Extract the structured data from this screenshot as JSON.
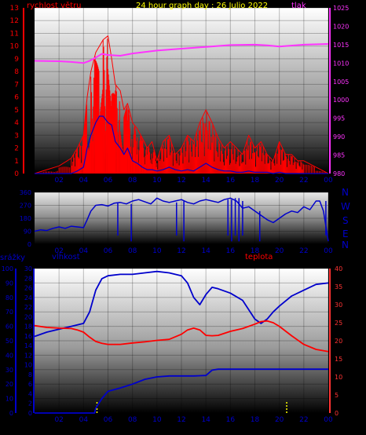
{
  "colors": {
    "wind": "#ff0000",
    "pressure": "#ff33ff",
    "title": "#ffff00",
    "direction": "#0000cc",
    "humidity": "#0000cc",
    "temperature": "#ff0000",
    "rain": "#0000cc",
    "rain_ticks": "#ffff00",
    "axis_right_top": "#ff33ff",
    "axis_right_bottom": "#ff3333",
    "axis_left": "#0000cc"
  },
  "header": {
    "wind_label": "rychlost větru",
    "title": "24 hour graph day : 26 Julio 2022",
    "pressure_label": "tlak"
  },
  "bottom_header": {
    "rain_label": "srážky",
    "humidity_label": "vlhkost",
    "temp_label": "teplota"
  },
  "compass": [
    "N",
    "W",
    "S",
    "E",
    "N"
  ],
  "x_ticks": [
    "02",
    "04",
    "06",
    "08",
    "10",
    "12",
    "14",
    "16",
    "18",
    "20",
    "22",
    "00"
  ],
  "chart_data": [
    {
      "type": "line",
      "title": "24 hour graph day : 26 Julio 2022",
      "x_ticks": [
        "02",
        "04",
        "06",
        "08",
        "10",
        "12",
        "14",
        "16",
        "18",
        "20",
        "22",
        "00"
      ],
      "left_axis": {
        "label": "rychlost větru",
        "ticks": [
          0,
          1,
          2,
          3,
          4,
          5,
          6,
          7,
          8,
          9,
          10,
          11,
          12,
          13
        ],
        "ylim": [
          0,
          13
        ]
      },
      "right_axis": {
        "label": "tlak",
        "ticks": [
          980,
          985,
          990,
          995,
          1000,
          1005,
          1010,
          1015,
          1020,
          1025
        ],
        "ylim": [
          980,
          1025
        ]
      },
      "series": [
        {
          "name": "rychlost větru",
          "x": [
            0,
            1,
            2,
            3,
            3.5,
            4,
            4.3,
            4.6,
            5,
            5.3,
            5.6,
            6,
            6.3,
            6.6,
            7,
            7.3,
            7.6,
            8,
            8.4,
            8.8,
            9.2,
            9.6,
            10,
            10.5,
            11,
            11.5,
            12,
            12.5,
            13,
            13.5,
            14,
            14.5,
            15,
            15.5,
            16,
            16.5,
            17,
            17.5,
            18,
            18.5,
            19,
            19.5,
            20,
            20.5,
            21,
            21.5,
            22,
            23,
            24
          ],
          "gusts": [
            0,
            0.3,
            0.6,
            1.2,
            2,
            3,
            6,
            8,
            9.5,
            10,
            10.5,
            10.8,
            9,
            7,
            6.5,
            5,
            5.5,
            4,
            3.5,
            2.8,
            2,
            2.5,
            1,
            2.5,
            3,
            1.5,
            2,
            3,
            2.5,
            4,
            5,
            4,
            2.8,
            2,
            2.5,
            2,
            1.5,
            3,
            2,
            2.5,
            1.5,
            1,
            2.5,
            1.5,
            1.5,
            1,
            1,
            0.5,
            0
          ],
          "average": [
            0,
            0,
            0,
            0,
            0.2,
            0.5,
            2,
            3,
            4,
            4.5,
            4.5,
            4,
            3.8,
            2.5,
            2,
            1.5,
            2,
            1,
            0.8,
            0.5,
            0.3,
            0.3,
            0.2,
            0.3,
            0.5,
            0.3,
            0.2,
            0.3,
            0.2,
            0.5,
            0.8,
            0.5,
            0.3,
            0.2,
            0.2,
            0.1,
            0.1,
            0.2,
            0.1,
            0.1,
            0.1,
            0,
            0.1,
            0,
            0,
            0,
            0,
            0,
            0
          ]
        },
        {
          "name": "tlak",
          "x": [
            0,
            2,
            3,
            4,
            4.5,
            5,
            5.5,
            6,
            7,
            8,
            10,
            12,
            14,
            16,
            18,
            19,
            20,
            22,
            24
          ],
          "values": [
            1010.6,
            1010.5,
            1010.3,
            1010.0,
            1010.6,
            1011.5,
            1012.5,
            1012.2,
            1012.0,
            1012.6,
            1013.4,
            1013.9,
            1014.4,
            1014.9,
            1015.0,
            1014.8,
            1014.5,
            1015.0,
            1015.2
          ]
        }
      ]
    },
    {
      "type": "line",
      "x_ticks": [
        "02",
        "04",
        "06",
        "08",
        "10",
        "12",
        "14",
        "16",
        "18",
        "20",
        "22",
        "00"
      ],
      "left_axis": {
        "ticks": [
          0,
          90,
          180,
          270,
          360
        ],
        "ylim": [
          0,
          360
        ]
      },
      "right_axis": {
        "ticks": [
          "N",
          "W",
          "S",
          "E",
          "N"
        ]
      },
      "series": [
        {
          "name": "direction",
          "x": [
            0,
            0.5,
            1,
            1.5,
            2,
            2.5,
            3,
            3.5,
            4,
            4.3,
            4.6,
            5,
            5.5,
            6,
            6.5,
            7,
            7.5,
            8,
            8.5,
            9,
            9.5,
            10,
            10.5,
            11,
            11.5,
            12,
            12.5,
            13,
            13.5,
            14,
            14.5,
            15,
            15.5,
            16,
            16.5,
            17,
            17.5,
            18,
            18.5,
            19,
            19.5,
            20,
            20.5,
            21,
            21.5,
            22,
            22.5,
            23,
            23.3,
            23.6,
            24
          ],
          "values": [
            90,
            100,
            95,
            110,
            120,
            110,
            125,
            120,
            115,
            170,
            230,
            270,
            275,
            265,
            285,
            290,
            280,
            300,
            310,
            295,
            280,
            320,
            300,
            290,
            300,
            310,
            290,
            280,
            300,
            310,
            300,
            290,
            310,
            320,
            300,
            250,
            260,
            230,
            200,
            170,
            150,
            180,
            210,
            230,
            220,
            260,
            240,
            300,
            300,
            230,
            20
          ]
        }
      ]
    },
    {
      "type": "line",
      "x_ticks": [
        "02",
        "04",
        "06",
        "08",
        "10",
        "12",
        "14",
        "16",
        "18",
        "20",
        "22",
        "00"
      ],
      "left_axis_outer": {
        "label": "srážky",
        "ticks": [
          0,
          10,
          20,
          30,
          40,
          50,
          60,
          70,
          80,
          90,
          100
        ],
        "ylim": [
          0,
          100
        ]
      },
      "left_axis_inner": {
        "label": "vlhkost",
        "ticks": [
          0,
          2,
          4,
          6,
          8,
          10,
          12,
          14,
          16,
          18,
          20,
          22,
          24,
          26,
          28,
          30
        ],
        "ylim": [
          0,
          30
        ]
      },
      "right_axis": {
        "label": "teplota",
        "ticks": [
          0,
          5,
          10,
          15,
          20,
          25,
          30,
          35,
          40
        ],
        "ylim": [
          0,
          40
        ]
      },
      "series": [
        {
          "name": "vlhkost",
          "x": [
            0,
            1,
            2,
            3,
            3.5,
            4,
            4.5,
            5,
            5.5,
            6,
            7,
            8,
            9,
            10,
            11,
            12,
            12.5,
            13,
            13.5,
            14,
            14.5,
            15,
            16,
            17,
            18,
            18.5,
            19,
            19.5,
            20,
            21,
            22,
            23,
            24
          ],
          "values": [
            53,
            56,
            58,
            60,
            61,
            62,
            70,
            85,
            93,
            95,
            96,
            96,
            97,
            98,
            97,
            95,
            90,
            80,
            75,
            82,
            87,
            86,
            83,
            78,
            65,
            62,
            65,
            70,
            74,
            81,
            85,
            89,
            90
          ]
        },
        {
          "name": "teplota",
          "x": [
            0,
            1,
            2,
            3,
            3.5,
            4,
            4.5,
            5,
            5.5,
            6,
            7,
            8,
            9,
            10,
            11,
            12,
            12.5,
            13,
            13.5,
            14,
            14.5,
            15,
            16,
            17,
            18,
            18.5,
            19,
            19.5,
            20,
            21,
            22,
            23,
            24
          ],
          "values": [
            24.2,
            23.7,
            23.5,
            23.4,
            23.0,
            22.4,
            21.0,
            19.8,
            19.3,
            19.0,
            19.0,
            19.4,
            19.7,
            20.1,
            20.4,
            21.8,
            23.0,
            23.5,
            23.0,
            21.5,
            21.4,
            21.5,
            22.6,
            23.4,
            24.6,
            25.3,
            25.5,
            25.0,
            24.0,
            21.4,
            19.0,
            17.6,
            17.0
          ]
        },
        {
          "name": "srážky",
          "x": [
            0,
            4.9,
            5,
            5.5,
            6,
            7,
            8,
            9,
            10,
            11,
            12,
            13,
            14,
            14.5,
            15,
            16,
            17,
            18,
            20,
            22,
            24
          ],
          "values": [
            0,
            0,
            1,
            3,
            4.5,
            5.2,
            6,
            7,
            7.5,
            7.7,
            7.7,
            7.7,
            7.8,
            8.9,
            9.1,
            9.1,
            9.1,
            9.1,
            9.1,
            9.1,
            9.1
          ]
        }
      ]
    }
  ]
}
